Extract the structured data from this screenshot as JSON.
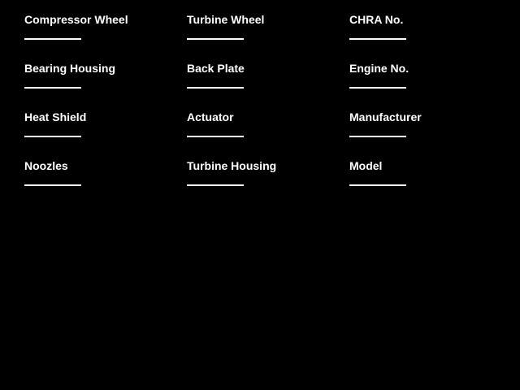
{
  "form": {
    "colors": {
      "background": "#000000",
      "text": "#ffffff",
      "underline": "#ffffff"
    },
    "columns": [
      {
        "fields": [
          {
            "label": "Compressor Wheel",
            "value": ""
          },
          {
            "label": "Bearing Housing",
            "value": ""
          },
          {
            "label": "Heat Shield",
            "value": ""
          },
          {
            "label": "Noozles",
            "value": ""
          }
        ]
      },
      {
        "fields": [
          {
            "label": "Turbine Wheel",
            "value": ""
          },
          {
            "label": "Back Plate",
            "value": ""
          },
          {
            "label": "Actuator",
            "value": ""
          },
          {
            "label": "Turbine Housing",
            "value": ""
          }
        ]
      },
      {
        "fields": [
          {
            "label": "CHRA No.",
            "value": ""
          },
          {
            "label": "Engine No.",
            "value": ""
          },
          {
            "label": "Manufacturer",
            "value": ""
          },
          {
            "label": "Model",
            "value": ""
          }
        ]
      }
    ]
  }
}
